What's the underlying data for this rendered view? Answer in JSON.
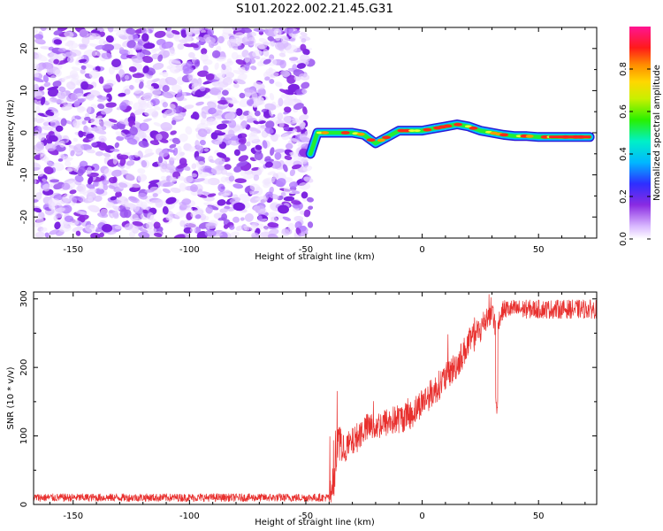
{
  "title": "S101.2022.002.21.45.G31",
  "chart_data": [
    {
      "type": "heatmap",
      "name": "spectrogram",
      "xlabel": "Height of straight line (km)",
      "ylabel": "Frequency (Hz)",
      "xlim": [
        -167,
        75
      ],
      "ylim": [
        -25,
        25
      ],
      "xticks": [
        -150,
        -100,
        -50,
        0,
        50
      ],
      "yticks": [
        -20,
        -10,
        0,
        10,
        20
      ],
      "noise_region": [
        -167,
        -48
      ],
      "signal_region": [
        -48,
        73
      ],
      "signal_track": {
        "x": [
          -48,
          -45,
          -40,
          -35,
          -30,
          -25,
          -20,
          -15,
          -10,
          -5,
          0,
          5,
          10,
          15,
          20,
          25,
          30,
          35,
          40,
          45,
          50,
          55,
          60,
          65,
          72
        ],
        "freq": [
          -5,
          0,
          0,
          0,
          0,
          -0.5,
          -2.5,
          -1,
          0.5,
          0.5,
          0.5,
          1,
          1.5,
          2,
          1.5,
          0.5,
          0,
          -0.5,
          -0.8,
          -0.8,
          -1,
          -1,
          -1,
          -1,
          -1
        ]
      },
      "colorbar": {
        "label": "Normalized spectral amplitude",
        "range": [
          0,
          1
        ],
        "ticks": [
          0.0,
          0.2,
          0.4,
          0.6,
          0.8
        ],
        "tick_labels": [
          "0.0",
          "0.2",
          "0.4",
          "0.6",
          "0.8"
        ]
      }
    },
    {
      "type": "line",
      "name": "snr",
      "xlabel": "Height of straight line (km)",
      "ylabel": "SNR (10 * v/v)",
      "xlim": [
        -167,
        75
      ],
      "ylim": [
        0,
        310
      ],
      "xticks": [
        -150,
        -100,
        -50,
        0,
        50
      ],
      "yticks": [
        0,
        100,
        200,
        300
      ],
      "color": "#e8302e",
      "trend": {
        "x": [
          -167,
          -40,
          -38,
          -36,
          -34,
          -30,
          -25,
          -20,
          -15,
          -10,
          -5,
          0,
          5,
          10,
          15,
          20,
          25,
          28,
          30,
          32,
          33,
          35,
          40,
          50,
          60,
          70,
          75
        ],
        "y": [
          10,
          10,
          30,
          100,
          80,
          90,
          110,
          115,
          120,
          125,
          130,
          150,
          165,
          185,
          205,
          235,
          255,
          275,
          285,
          250,
          270,
          285,
          285,
          285,
          285,
          285,
          285
        ]
      }
    }
  ],
  "colors": {
    "noise": "#8a2be2",
    "line": "#e8302e"
  }
}
